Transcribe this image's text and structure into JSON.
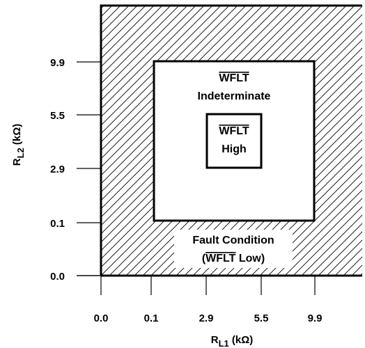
{
  "x_axis": {
    "title_main": "R",
    "title_sub": "L1",
    "title_unit": " (kΩ)",
    "ticks": [
      "0.0",
      "0.1",
      "2.9",
      "5.5",
      "9.9"
    ]
  },
  "y_axis": {
    "title_main": "R",
    "title_sub": "L2",
    "title_unit": " (kΩ)",
    "ticks": [
      "0.0",
      "0.1",
      "2.9",
      "5.5",
      "9.9"
    ]
  },
  "regions": {
    "fault": {
      "line1": "Fault Condition",
      "line2_open": "(",
      "line2_signal": "WFLT",
      "line2_close": " Low)"
    },
    "indeterminate": {
      "signal": "WFLT",
      "label": "Indeterminate"
    },
    "high": {
      "signal": "WFLT",
      "label": "High"
    }
  }
}
